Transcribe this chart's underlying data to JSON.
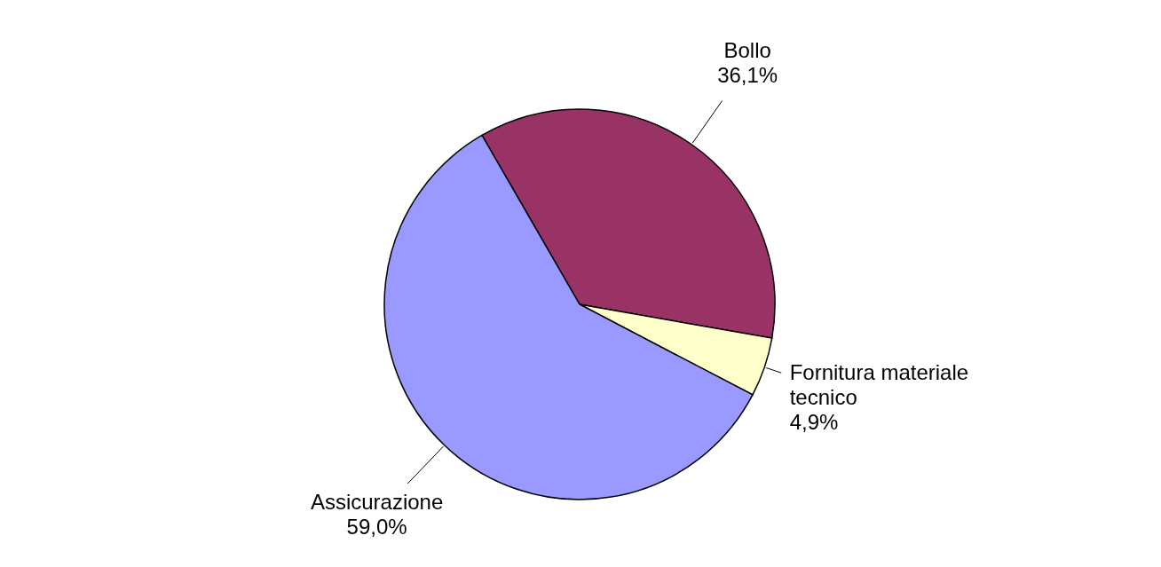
{
  "chart_data": {
    "type": "pie",
    "categories": [
      "Bollo",
      "Fornitura materiale tecnico",
      "Assicurazione"
    ],
    "values": [
      36.1,
      4.9,
      59.0
    ],
    "colors": [
      "#993366",
      "#ffffcc",
      "#9999ff"
    ],
    "value_labels": [
      "36,1%",
      "4,9%",
      "59,0%"
    ],
    "legend": false
  }
}
